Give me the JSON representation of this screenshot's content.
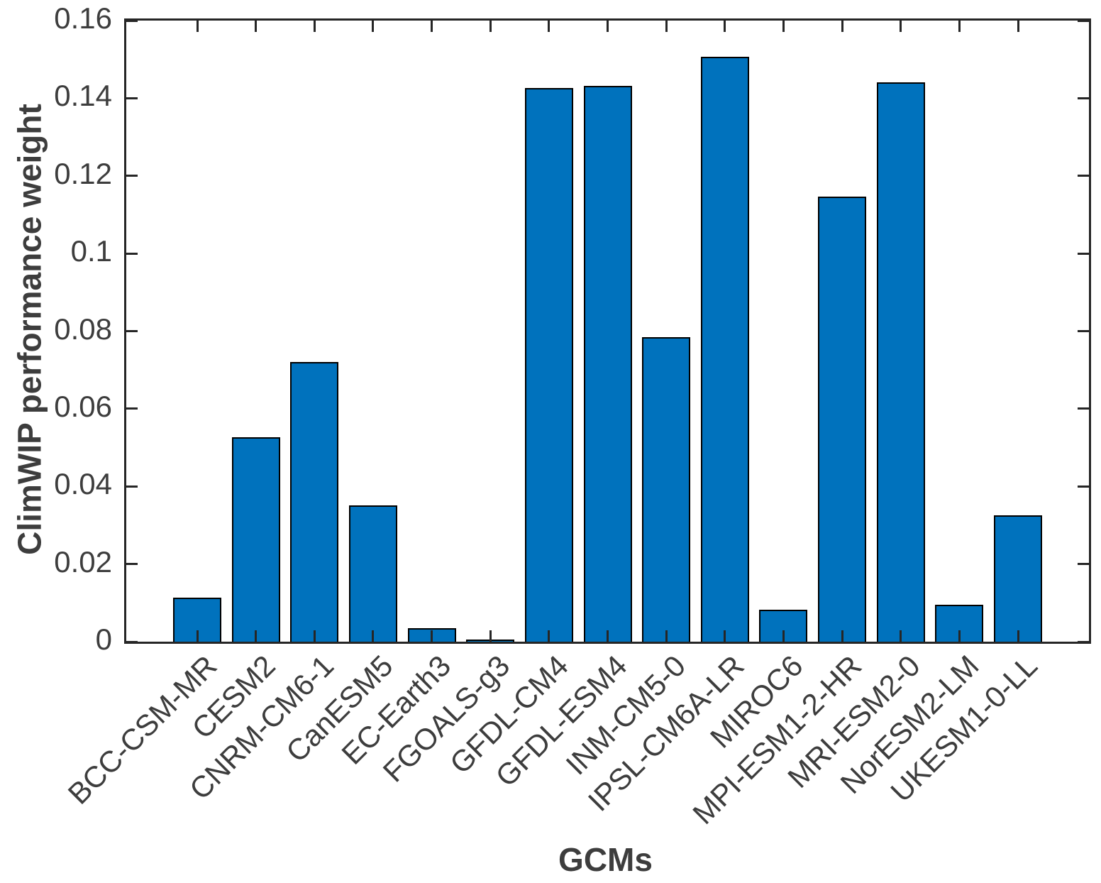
{
  "figure": {
    "background": "#ffffff"
  },
  "chart_data": {
    "type": "bar",
    "title": "",
    "xlabel": "GCMs",
    "ylabel": "ClimWIP performance weight",
    "categories": [
      "BCC-CSM-MR",
      "CESM2",
      "CNRM-CM6-1",
      "CanESM5",
      "EC-Earth3",
      "FGOALS-g3",
      "GFDL-CM4",
      "GFDL-ESM4",
      "INM-CM5-0",
      "IPSL-CM6A-LR",
      "MIROC6",
      "MPI-ESM1-2-HR",
      "MRI-ESM2-0",
      "NorESM2-LM",
      "UKESM1-0-LL"
    ],
    "values": [
      0.0113,
      0.0527,
      0.072,
      0.0351,
      0.0035,
      0.0005,
      0.1426,
      0.1432,
      0.0784,
      0.1507,
      0.0082,
      0.1147,
      0.1441,
      0.0095,
      0.0325
    ],
    "ylim": [
      0,
      0.16
    ],
    "yticks": [
      0,
      0.02,
      0.04,
      0.06,
      0.08,
      0.1,
      0.12,
      0.14,
      0.16
    ],
    "ytick_labels": [
      "0",
      "0.02",
      "0.04",
      "0.06",
      "0.08",
      "0.1",
      "0.12",
      "0.14",
      "0.16"
    ],
    "xtick_rotation_deg": 45,
    "grid": false,
    "legend": "none",
    "bar_color": "#0072BD",
    "bar_edge_color": "#000000",
    "axis_color": "#262626",
    "text_color": "#3d3d3d"
  }
}
